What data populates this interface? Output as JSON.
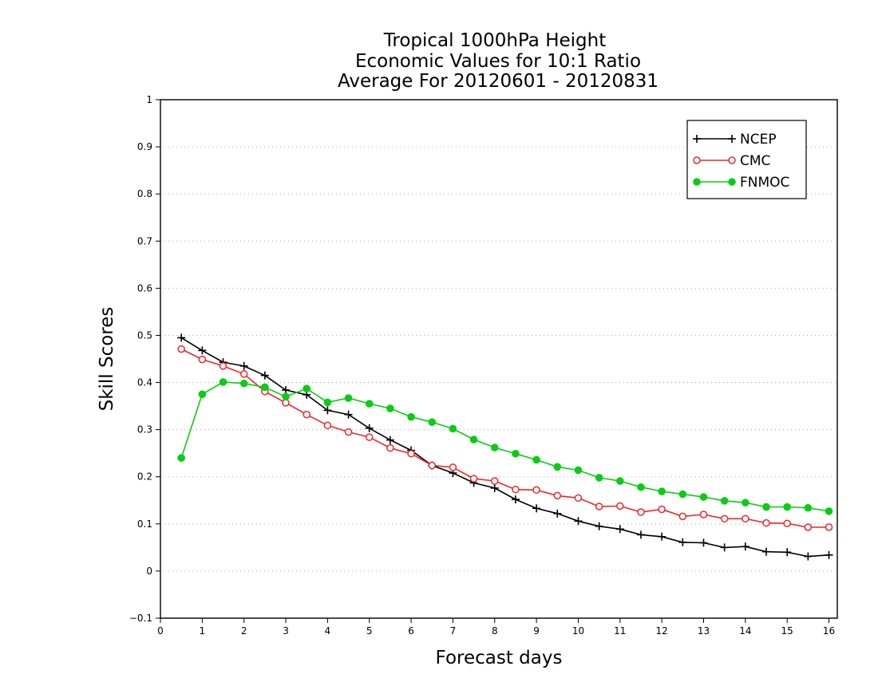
{
  "chart_data": {
    "type": "line",
    "title_lines": [
      "Tropical 1000hPa Height",
      "Economic Values for 10:1 Ratio",
      "Average For 20120601 - 20120831"
    ],
    "xlabel": "Forecast days",
    "ylabel": "Skill Scores",
    "xlim": [
      0,
      16.2
    ],
    "ylim": [
      -0.1,
      1
    ],
    "xticks": [
      0,
      1,
      2,
      3,
      4,
      5,
      6,
      7,
      8,
      9,
      10,
      11,
      12,
      13,
      14,
      15,
      16
    ],
    "xtick_labels": [
      "0",
      "1",
      "2",
      "3",
      "4",
      "5",
      "6",
      "7",
      "8",
      "9",
      "10",
      "11",
      "12",
      "13",
      "14",
      "15",
      "16"
    ],
    "yticks": [
      -0.1,
      0,
      0.1,
      0.2,
      0.3,
      0.4,
      0.5,
      0.6,
      0.7,
      0.8,
      0.9,
      1
    ],
    "ytick_labels": [
      "−0.1",
      "0",
      "0.1",
      "0.2",
      "0.3",
      "0.4",
      "0.5",
      "0.6",
      "0.7",
      "0.8",
      "0.9",
      "1"
    ],
    "grid": "horizontal dotted",
    "legend_position": "top-right",
    "x": [
      0.5,
      1.0,
      1.5,
      2.0,
      2.5,
      3.0,
      3.5,
      4.0,
      4.5,
      5.0,
      5.5,
      6.0,
      6.5,
      7.0,
      7.5,
      8.0,
      8.5,
      9.0,
      9.5,
      10.0,
      10.5,
      11.0,
      11.5,
      12.0,
      12.5,
      13.0,
      13.5,
      14.0,
      14.5,
      15.0,
      15.5,
      16.0
    ],
    "series": [
      {
        "name": "NCEP",
        "color": "#000000",
        "marker": "plus",
        "values": [
          0.495,
          0.468,
          0.443,
          0.435,
          0.415,
          0.384,
          0.374,
          0.341,
          0.332,
          0.303,
          0.278,
          0.256,
          0.224,
          0.208,
          0.187,
          0.176,
          0.152,
          0.133,
          0.122,
          0.106,
          0.095,
          0.089,
          0.077,
          0.073,
          0.061,
          0.06,
          0.05,
          0.052,
          0.041,
          0.04,
          0.031,
          0.034
        ]
      },
      {
        "name": "CMC",
        "color": "#e8282b",
        "marker": "open-circle",
        "values": [
          0.471,
          0.449,
          0.435,
          0.418,
          0.381,
          0.357,
          0.332,
          0.309,
          0.295,
          0.284,
          0.261,
          0.249,
          0.224,
          0.22,
          0.196,
          0.191,
          0.173,
          0.172,
          0.16,
          0.155,
          0.137,
          0.138,
          0.125,
          0.131,
          0.116,
          0.12,
          0.111,
          0.111,
          0.102,
          0.101,
          0.093,
          0.093
        ]
      },
      {
        "name": "FNMOC",
        "color": "#0ccb16",
        "marker": "filled-circle",
        "values": [
          0.24,
          0.375,
          0.401,
          0.398,
          0.39,
          0.37,
          0.387,
          0.358,
          0.367,
          0.355,
          0.345,
          0.327,
          0.316,
          0.302,
          0.279,
          0.262,
          0.249,
          0.236,
          0.221,
          0.214,
          0.198,
          0.191,
          0.178,
          0.169,
          0.163,
          0.157,
          0.149,
          0.145,
          0.136,
          0.136,
          0.134,
          0.127
        ]
      }
    ]
  }
}
